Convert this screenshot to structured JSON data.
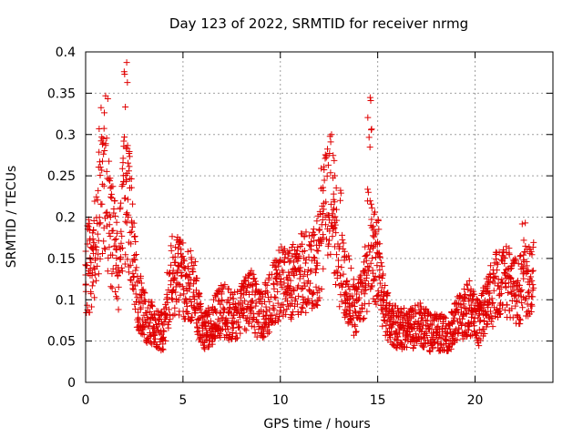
{
  "chart_data": {
    "type": "scatter",
    "title": "Day 123 of 2022, SRMTID for receiver nrmg",
    "xlabel": "GPS time / hours",
    "ylabel": "SRMTID / TECUs",
    "xlim": [
      0,
      24
    ],
    "ylim": [
      0,
      0.4
    ],
    "xticks": [
      0,
      5,
      10,
      15,
      20
    ],
    "yticks": [
      0,
      0.05,
      0.1,
      0.15,
      0.2,
      0.25,
      0.3,
      0.35,
      0.4
    ],
    "xtick_labels": [
      "0",
      "5",
      "10",
      "15",
      "20"
    ],
    "ytick_labels": [
      "0",
      "0.05",
      "0.1",
      "0.15",
      "0.2",
      "0.25",
      "0.3",
      "0.35",
      "0.4"
    ],
    "grid": true,
    "marker": "+",
    "marker_color": "#e00000",
    "approx_sample_interval_hours": 0.0167,
    "trend": {
      "x": [
        0,
        0.3,
        0.6,
        0.9,
        1.1,
        1.4,
        1.7,
        2.0,
        2.3,
        2.6,
        3.0,
        3.5,
        4.0,
        4.4,
        4.8,
        5.2,
        5.6,
        6.0,
        6.5,
        7.0,
        7.5,
        8.0,
        8.5,
        9.0,
        9.5,
        10.0,
        10.5,
        11.0,
        11.5,
        12.0,
        12.3,
        12.6,
        13.0,
        13.4,
        13.8,
        14.2,
        14.6,
        15.0,
        15.3,
        15.7,
        16.2,
        16.7,
        17.2,
        17.7,
        18.2,
        18.7,
        19.2,
        19.7,
        20.2,
        20.7,
        21.2,
        21.7,
        22.2,
        22.6,
        23.0
      ],
      "y": [
        0.13,
        0.12,
        0.19,
        0.25,
        0.22,
        0.17,
        0.14,
        0.22,
        0.2,
        0.11,
        0.08,
        0.07,
        0.06,
        0.13,
        0.13,
        0.12,
        0.11,
        0.06,
        0.07,
        0.09,
        0.08,
        0.09,
        0.1,
        0.08,
        0.1,
        0.12,
        0.12,
        0.13,
        0.14,
        0.15,
        0.22,
        0.24,
        0.14,
        0.12,
        0.09,
        0.1,
        0.16,
        0.15,
        0.09,
        0.07,
        0.065,
        0.065,
        0.07,
        0.06,
        0.06,
        0.06,
        0.08,
        0.09,
        0.07,
        0.1,
        0.12,
        0.12,
        0.11,
        0.12,
        0.14
      ]
    },
    "bursts": [
      {
        "center": 0.3,
        "width": 0.45,
        "peak": 0.21
      },
      {
        "center": 0.95,
        "width": 0.5,
        "peak": 0.35
      },
      {
        "center": 2.05,
        "width": 0.2,
        "peak": 0.39
      },
      {
        "center": 12.25,
        "width": 0.3,
        "peak": 0.3
      },
      {
        "center": 13.1,
        "width": 0.2,
        "peak": 0.29
      },
      {
        "center": 14.6,
        "width": 0.25,
        "peak": 0.35
      },
      {
        "center": 22.5,
        "width": 0.2,
        "peak": 0.2
      }
    ]
  }
}
